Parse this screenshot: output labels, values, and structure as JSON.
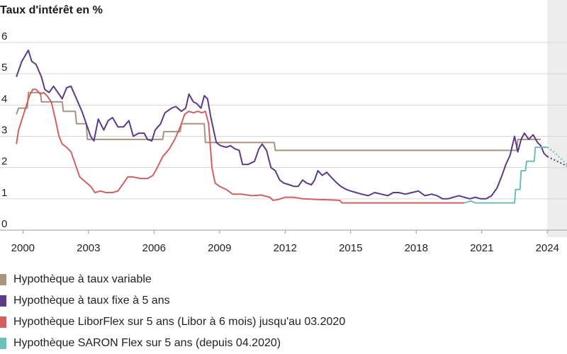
{
  "chart_data": {
    "type": "line",
    "title": "Taux d'intérêt en %",
    "xlabel": "",
    "ylabel": "",
    "xlim": [
      1999.6,
      2024.9
    ],
    "ylim": [
      0,
      6
    ],
    "x_ticks": [
      "2000",
      "2003",
      "2006",
      "2009",
      "2012",
      "2015",
      "2018",
      "2021",
      "2024"
    ],
    "y_ticks": [
      "0",
      "1",
      "2",
      "3",
      "4",
      "5",
      "6"
    ],
    "grid": "horizontal",
    "legend_position": "bottom",
    "forecast_region_start": 2024.0,
    "series": [
      {
        "name": "Hypothèque à taux variable",
        "color": "#a89480",
        "points": [
          [
            1999.7,
            3.7
          ],
          [
            1999.8,
            3.9
          ],
          [
            2000.2,
            3.9
          ],
          [
            2000.25,
            4.4
          ],
          [
            2000.8,
            4.4
          ],
          [
            2000.85,
            4.1
          ],
          [
            2001.8,
            4.1
          ],
          [
            2001.85,
            3.8
          ],
          [
            2002.4,
            3.8
          ],
          [
            2002.45,
            3.4
          ],
          [
            2002.9,
            3.4
          ],
          [
            2002.95,
            2.9
          ],
          [
            2006.4,
            2.9
          ],
          [
            2006.45,
            3.15
          ],
          [
            2007.2,
            3.15
          ],
          [
            2007.25,
            3.4
          ],
          [
            2008.3,
            3.4
          ],
          [
            2008.35,
            2.8
          ],
          [
            2011.5,
            2.8
          ],
          [
            2011.55,
            2.55
          ],
          [
            2022.6,
            2.55
          ],
          [
            2022.65,
            2.9
          ],
          [
            2023.7,
            2.9
          ]
        ]
      },
      {
        "name": "Hypothèque à taux fixe à 5 ans",
        "color": "#5b3a86",
        "points": [
          [
            1999.7,
            4.9
          ],
          [
            1999.95,
            5.4
          ],
          [
            2000.25,
            5.75
          ],
          [
            2000.4,
            5.4
          ],
          [
            2000.6,
            5.3
          ],
          [
            2000.85,
            4.9
          ],
          [
            2001.0,
            4.5
          ],
          [
            2001.2,
            4.4
          ],
          [
            2001.4,
            4.6
          ],
          [
            2001.6,
            4.4
          ],
          [
            2001.8,
            4.2
          ],
          [
            2002.0,
            4.55
          ],
          [
            2002.2,
            4.6
          ],
          [
            2002.45,
            4.2
          ],
          [
            2002.7,
            3.8
          ],
          [
            2002.9,
            3.4
          ],
          [
            2003.1,
            3.0
          ],
          [
            2003.25,
            2.85
          ],
          [
            2003.45,
            3.55
          ],
          [
            2003.7,
            3.2
          ],
          [
            2003.9,
            3.5
          ],
          [
            2004.1,
            3.6
          ],
          [
            2004.35,
            3.3
          ],
          [
            2004.6,
            3.3
          ],
          [
            2004.85,
            3.5
          ],
          [
            2005.05,
            3.0
          ],
          [
            2005.3,
            3.1
          ],
          [
            2005.55,
            3.1
          ],
          [
            2005.7,
            2.9
          ],
          [
            2005.9,
            2.85
          ],
          [
            2006.05,
            3.2
          ],
          [
            2006.3,
            3.4
          ],
          [
            2006.5,
            3.75
          ],
          [
            2006.8,
            3.9
          ],
          [
            2007.0,
            3.95
          ],
          [
            2007.25,
            3.8
          ],
          [
            2007.45,
            3.9
          ],
          [
            2007.6,
            4.35
          ],
          [
            2007.8,
            4.1
          ],
          [
            2007.95,
            4.05
          ],
          [
            2008.15,
            3.9
          ],
          [
            2008.3,
            4.3
          ],
          [
            2008.45,
            4.2
          ],
          [
            2008.6,
            3.6
          ],
          [
            2008.85,
            2.8
          ],
          [
            2009.05,
            2.7
          ],
          [
            2009.3,
            2.65
          ],
          [
            2009.5,
            2.7
          ],
          [
            2009.7,
            2.6
          ],
          [
            2009.9,
            2.55
          ],
          [
            2010.05,
            2.1
          ],
          [
            2010.3,
            2.1
          ],
          [
            2010.6,
            2.2
          ],
          [
            2010.8,
            2.6
          ],
          [
            2010.95,
            2.75
          ],
          [
            2011.15,
            2.55
          ],
          [
            2011.35,
            2.0
          ],
          [
            2011.55,
            1.9
          ],
          [
            2011.75,
            1.6
          ],
          [
            2011.95,
            1.5
          ],
          [
            2012.2,
            1.45
          ],
          [
            2012.4,
            1.4
          ],
          [
            2012.6,
            1.4
          ],
          [
            2012.8,
            1.6
          ],
          [
            2013.0,
            1.5
          ],
          [
            2013.2,
            1.45
          ],
          [
            2013.35,
            1.6
          ],
          [
            2013.5,
            1.9
          ],
          [
            2013.7,
            1.75
          ],
          [
            2013.9,
            1.85
          ],
          [
            2014.1,
            1.7
          ],
          [
            2014.3,
            1.55
          ],
          [
            2014.55,
            1.4
          ],
          [
            2014.8,
            1.3
          ],
          [
            2015.0,
            1.25
          ],
          [
            2015.25,
            1.2
          ],
          [
            2015.5,
            1.15
          ],
          [
            2015.8,
            1.1
          ],
          [
            2016.1,
            1.2
          ],
          [
            2016.4,
            1.15
          ],
          [
            2016.7,
            1.1
          ],
          [
            2016.95,
            1.2
          ],
          [
            2017.2,
            1.2
          ],
          [
            2017.5,
            1.15
          ],
          [
            2017.8,
            1.2
          ],
          [
            2018.1,
            1.25
          ],
          [
            2018.4,
            1.1
          ],
          [
            2018.7,
            1.15
          ],
          [
            2018.95,
            1.1
          ],
          [
            2019.2,
            1.0
          ],
          [
            2019.45,
            1.0
          ],
          [
            2019.7,
            1.05
          ],
          [
            2019.95,
            1.1
          ],
          [
            2020.2,
            1.05
          ],
          [
            2020.45,
            1.0
          ],
          [
            2020.7,
            1.05
          ],
          [
            2020.95,
            1.0
          ],
          [
            2021.2,
            1.0
          ],
          [
            2021.45,
            1.1
          ],
          [
            2021.7,
            1.35
          ],
          [
            2021.9,
            1.7
          ],
          [
            2022.1,
            2.1
          ],
          [
            2022.3,
            2.4
          ],
          [
            2022.5,
            3.0
          ],
          [
            2022.65,
            2.5
          ],
          [
            2022.8,
            2.9
          ],
          [
            2022.95,
            3.1
          ],
          [
            2023.15,
            2.9
          ],
          [
            2023.35,
            3.05
          ],
          [
            2023.55,
            2.8
          ],
          [
            2023.7,
            2.7
          ],
          [
            2023.85,
            2.45
          ],
          [
            2024.0,
            2.35
          ]
        ]
      },
      {
        "name": "Hypothèque LiborFlex sur 5 ans (Libor à 6 mois) jusqu'au 03.2020",
        "color": "#d36060",
        "points": [
          [
            1999.7,
            2.75
          ],
          [
            1999.8,
            3.2
          ],
          [
            2000.05,
            3.75
          ],
          [
            2000.3,
            4.3
          ],
          [
            2000.45,
            4.5
          ],
          [
            2000.6,
            4.5
          ],
          [
            2000.8,
            4.35
          ],
          [
            2000.95,
            4.4
          ],
          [
            2001.1,
            4.3
          ],
          [
            2001.3,
            4.1
          ],
          [
            2001.5,
            3.5
          ],
          [
            2001.65,
            3.0
          ],
          [
            2001.8,
            2.75
          ],
          [
            2002.0,
            2.65
          ],
          [
            2002.2,
            2.5
          ],
          [
            2002.45,
            2.0
          ],
          [
            2002.6,
            1.7
          ],
          [
            2002.85,
            1.55
          ],
          [
            2003.1,
            1.4
          ],
          [
            2003.3,
            1.2
          ],
          [
            2003.55,
            1.25
          ],
          [
            2003.8,
            1.2
          ],
          [
            2004.1,
            1.2
          ],
          [
            2004.35,
            1.25
          ],
          [
            2004.6,
            1.5
          ],
          [
            2004.8,
            1.7
          ],
          [
            2005.0,
            1.7
          ],
          [
            2005.4,
            1.65
          ],
          [
            2005.7,
            1.65
          ],
          [
            2005.95,
            1.75
          ],
          [
            2006.15,
            2.0
          ],
          [
            2006.4,
            2.35
          ],
          [
            2006.7,
            2.6
          ],
          [
            2006.95,
            2.9
          ],
          [
            2007.2,
            3.3
          ],
          [
            2007.4,
            3.7
          ],
          [
            2007.6,
            3.8
          ],
          [
            2007.8,
            3.75
          ],
          [
            2008.0,
            3.8
          ],
          [
            2008.2,
            3.75
          ],
          [
            2008.35,
            3.8
          ],
          [
            2008.5,
            3.4
          ],
          [
            2008.65,
            2.0
          ],
          [
            2008.8,
            1.5
          ],
          [
            2009.0,
            1.4
          ],
          [
            2009.3,
            1.3
          ],
          [
            2009.6,
            1.15
          ],
          [
            2010.0,
            1.15
          ],
          [
            2010.5,
            1.1
          ],
          [
            2010.9,
            1.12
          ],
          [
            2011.3,
            1.05
          ],
          [
            2011.45,
            0.95
          ],
          [
            2011.7,
            0.98
          ],
          [
            2012.0,
            1.05
          ],
          [
            2012.4,
            1.05
          ],
          [
            2012.8,
            1.0
          ],
          [
            2013.5,
            0.98
          ],
          [
            2014.0,
            0.97
          ],
          [
            2014.5,
            0.95
          ],
          [
            2014.6,
            0.87
          ],
          [
            2020.2,
            0.87
          ]
        ]
      },
      {
        "name": "Hypothèque SARON Flex sur 5 ans (depuis 04.2020)",
        "color": "#6dbfb5",
        "points": [
          [
            2020.2,
            0.87
          ],
          [
            2020.5,
            0.93
          ],
          [
            2020.7,
            0.87
          ],
          [
            2022.5,
            0.87
          ],
          [
            2022.55,
            1.3
          ],
          [
            2022.75,
            1.3
          ],
          [
            2022.8,
            1.9
          ],
          [
            2023.0,
            1.9
          ],
          [
            2023.05,
            2.2
          ],
          [
            2023.4,
            2.2
          ],
          [
            2023.45,
            2.65
          ],
          [
            2024.0,
            2.65
          ]
        ]
      }
    ],
    "forecasts": [
      {
        "series_index": 1,
        "points": [
          [
            2024.0,
            2.35
          ],
          [
            2024.3,
            2.25
          ],
          [
            2024.6,
            2.15
          ],
          [
            2024.9,
            2.05
          ]
        ]
      },
      {
        "series_index": 3,
        "points": [
          [
            2024.0,
            2.65
          ],
          [
            2024.3,
            2.5
          ],
          [
            2024.6,
            2.3
          ],
          [
            2024.9,
            2.1
          ]
        ]
      }
    ]
  }
}
